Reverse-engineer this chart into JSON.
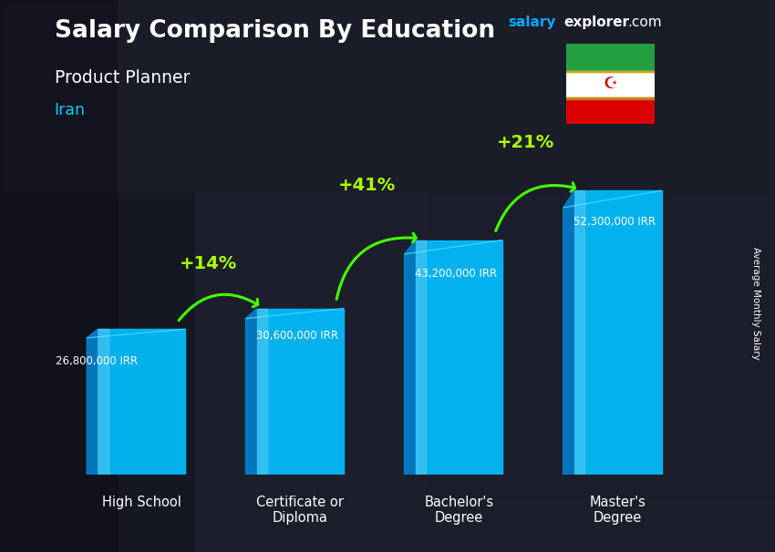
{
  "title": "Salary Comparison By Education",
  "subtitle": "Product Planner",
  "country": "Iran",
  "categories": [
    "High School",
    "Certificate or\nDiploma",
    "Bachelor's\nDegree",
    "Master's\nDegree"
  ],
  "values": [
    26800000,
    30600000,
    43200000,
    52300000
  ],
  "value_labels": [
    "26,800,000 IRR",
    "30,600,000 IRR",
    "43,200,000 IRR",
    "52,300,000 IRR"
  ],
  "pct_labels": [
    "+14%",
    "+41%",
    "+21%"
  ],
  "bar_color": "#00bfff",
  "bar_color_light": "#40d8ff",
  "bar_color_dark": "#0080cc",
  "bar_color_side": "#0090bb",
  "title_color": "#ffffff",
  "subtitle_color": "#ffffff",
  "country_color": "#00cfff",
  "value_label_color": "#ffffff",
  "pct_color": "#aaff00",
  "arrow_color": "#44ff00",
  "ylabel": "Average Monthly Salary",
  "ylabel_color": "#ffffff",
  "bg_dark": "#2a2a35",
  "salary_text_color": "#00aaff",
  "explorer_text_color": "#ffffff",
  "ylim": [
    0,
    63000000
  ],
  "bar_width": 0.55,
  "bar_positions": [
    0,
    1,
    2,
    3
  ],
  "flag_green": "#239f40",
  "flag_white": "#ffffff",
  "flag_red": "#da0000"
}
